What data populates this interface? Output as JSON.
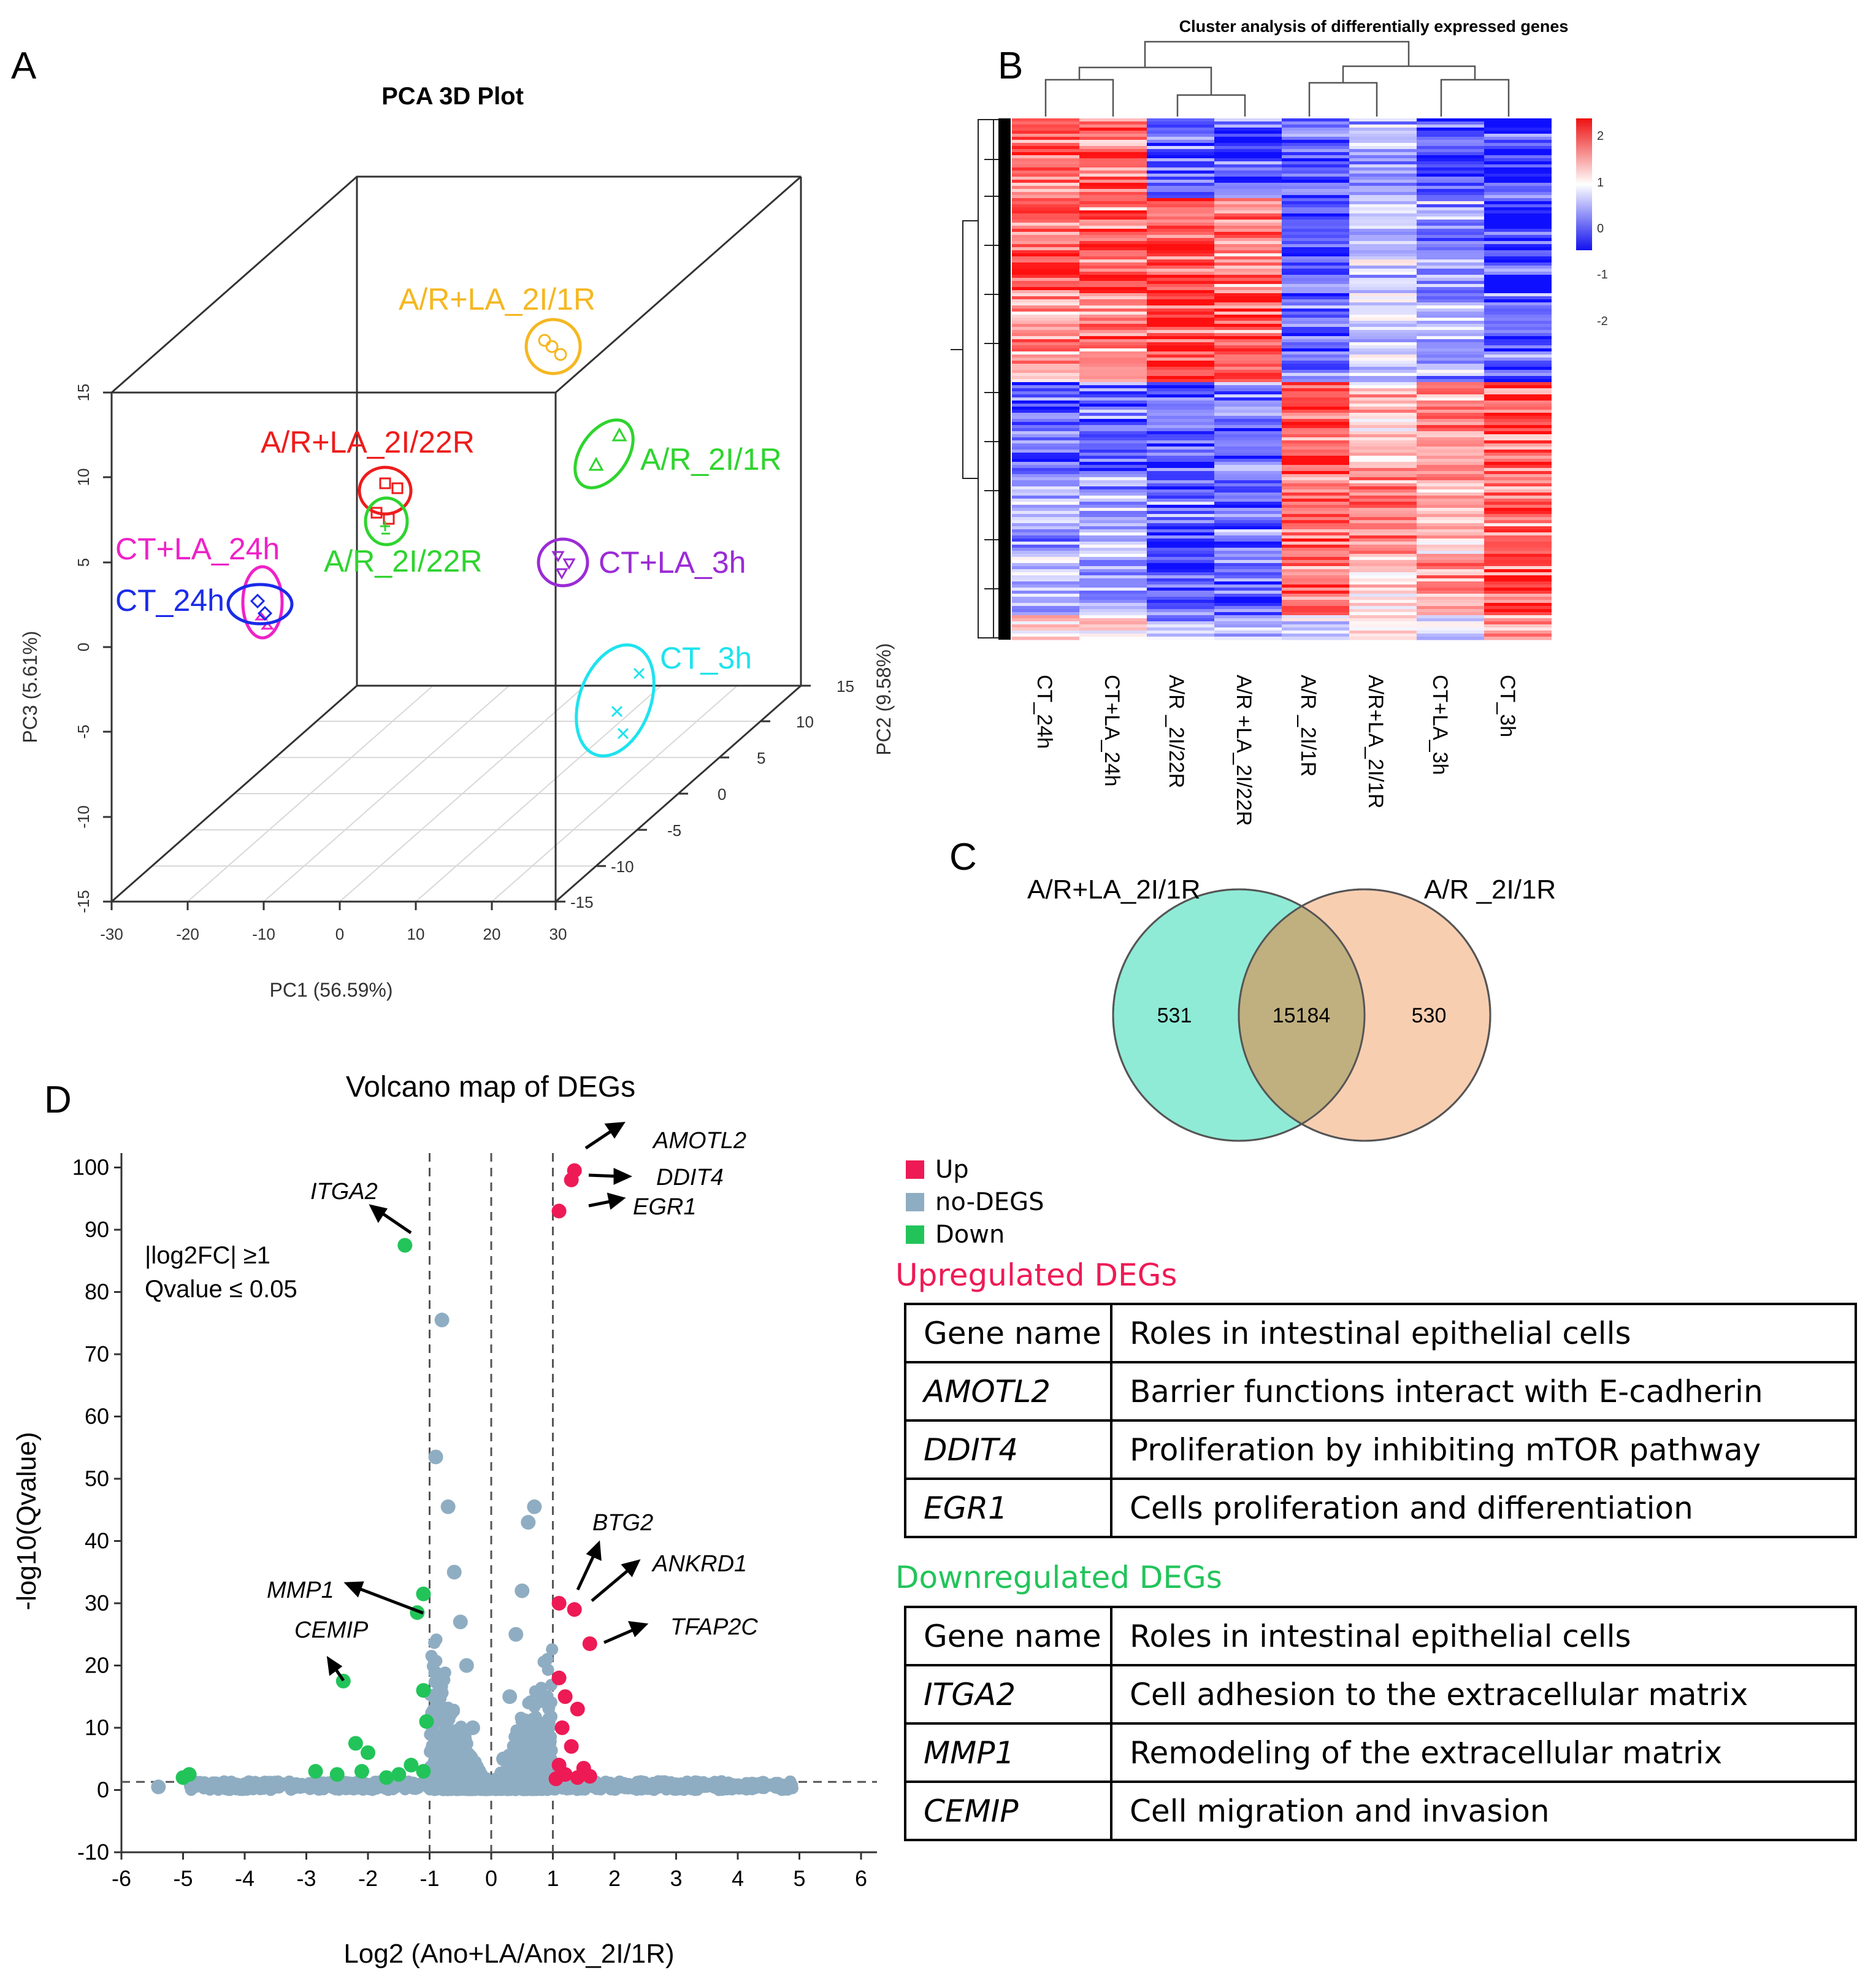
{
  "panels": {
    "a": "A",
    "b": "B",
    "c": "C",
    "d": "D"
  },
  "pca": {
    "title": "PCA 3D Plot",
    "x_label": "PC1 (56.59%)",
    "y_label": "PC2 (9.58%)",
    "z_label": "PC3 (5.61%)",
    "x_ticks": [
      "-30",
      "-20",
      "-10",
      "0",
      "10",
      "20",
      "30"
    ],
    "y_ticks": [
      "-15",
      "-10",
      "-5",
      "0",
      "5",
      "10",
      "15"
    ],
    "z_ticks": [
      "-15",
      "-10",
      "-5",
      "0",
      "5",
      "10",
      "15"
    ],
    "groups": [
      {
        "name": "A/R+LA_2I/1R",
        "color": "#F5B722"
      },
      {
        "name": "A/R+LA_2I/22R",
        "color": "#EE1C1C"
      },
      {
        "name": "A/R_2I/1R",
        "color": "#2ED42E"
      },
      {
        "name": "A/R_2I/22R",
        "color": "#2ED42E"
      },
      {
        "name": "CT+LA_24h",
        "color": "#EE22C8"
      },
      {
        "name": "CT_24h",
        "color": "#1A2BE8"
      },
      {
        "name": "CT+LA_3h",
        "color": "#9B2BD6"
      },
      {
        "name": "CT_3h",
        "color": "#1EE3EE"
      }
    ]
  },
  "heatmap": {
    "title": "Cluster analysis of differentially expressed genes",
    "columns": [
      "CT_24h",
      "CT+LA_24h",
      "A/R _2I/22R",
      "A/R +LA_2I/22R",
      "A/R _2I/1R",
      "A/R+LA_2I/1R",
      "CT+LA_3h",
      "CT_3h"
    ],
    "scale_ticks": [
      "2",
      "1",
      "0",
      "-1",
      "-2"
    ],
    "colors": {
      "high": "#EE1111",
      "mid": "#FFFFFF",
      "low": "#1111EE"
    }
  },
  "venn": {
    "left_label": "A/R+LA_2I/1R",
    "right_label": "A/R _2I/1R",
    "left_only": "531",
    "both": "15184",
    "right_only": "530",
    "left_color": "#8FEBD6",
    "right_color": "#F7C6A3"
  },
  "volcano": {
    "title": "Volcano map of DEGs",
    "xlabel": "Log2 (Ano+LA/Anox_2I/1R)",
    "ylabel": "-log10(Qvalue)",
    "x_ticks": [
      "-6",
      "-5",
      "-4",
      "-3",
      "-2",
      "-1",
      "0",
      "1",
      "2",
      "3",
      "4",
      "5",
      "6"
    ],
    "y_ticks": [
      "100",
      "90",
      "80",
      "70",
      "60",
      "50",
      "40",
      "30",
      "20",
      "10",
      "0",
      "-10"
    ],
    "threshold_line1": "|log2FC| ≥1",
    "threshold_line2": "Qvalue ≤ 0.05",
    "legend": [
      {
        "label": "Up",
        "color": "#EE1A55"
      },
      {
        "label": "no-DEGS",
        "color": "#8FADC2"
      },
      {
        "label": "Down",
        "color": "#22C45A"
      }
    ],
    "gene_labels": [
      "AMOTL2",
      "DDIT4",
      "EGR1",
      "ITGA2",
      "BTG2",
      "ANKRD1",
      "MMP1",
      "TFAP2C",
      "CEMIP"
    ]
  },
  "chart_data": {
    "type": "scatter",
    "title": "Volcano map of DEGs",
    "xlabel": "Log2 (Ano+LA/Anox_2I/1R)",
    "ylabel": "-log10(Qvalue)",
    "xlim": [
      -6,
      6
    ],
    "ylim": [
      -10,
      100
    ],
    "thresholds": {
      "x": [
        -1,
        1
      ],
      "y": 1.3
    },
    "series": [
      {
        "name": "Up",
        "points": [
          [
            1.35,
            99.5
          ],
          [
            1.3,
            98
          ],
          [
            1.1,
            93
          ],
          [
            1.1,
            30
          ],
          [
            1.35,
            29
          ],
          [
            1.6,
            23.5
          ],
          [
            1.1,
            18
          ],
          [
            1.2,
            15
          ],
          [
            1.4,
            13
          ],
          [
            1.15,
            10
          ],
          [
            1.3,
            7
          ],
          [
            1.1,
            4
          ],
          [
            1.5,
            3.5
          ],
          [
            1.2,
            2.5
          ],
          [
            1.4,
            2
          ],
          [
            1.6,
            2.2
          ],
          [
            1.05,
            1.8
          ]
        ]
      },
      {
        "name": "Down",
        "points": [
          [
            -1.4,
            87.5
          ],
          [
            -1.1,
            31.5
          ],
          [
            -1.2,
            28.5
          ],
          [
            -2.4,
            17.5
          ],
          [
            -1.1,
            16
          ],
          [
            -1.05,
            11
          ],
          [
            -2.2,
            7.5
          ],
          [
            -2.0,
            6
          ],
          [
            -5.0,
            2
          ],
          [
            -4.9,
            2.5
          ],
          [
            -2.85,
            3
          ],
          [
            -2.5,
            2.5
          ],
          [
            -2.1,
            3
          ],
          [
            -1.7,
            2
          ],
          [
            -1.5,
            2.5
          ],
          [
            -1.3,
            4
          ],
          [
            -1.1,
            3
          ]
        ]
      },
      {
        "name": "no-DEGS",
        "points": [
          [
            -0.8,
            75.5
          ],
          [
            -0.9,
            53.5
          ],
          [
            -0.7,
            45.5
          ],
          [
            0.7,
            45.5
          ],
          [
            0.6,
            43
          ],
          [
            -0.6,
            35
          ],
          [
            0.5,
            32
          ],
          [
            -0.5,
            27
          ],
          [
            0.4,
            25
          ],
          [
            -0.4,
            20
          ],
          [
            0.3,
            15
          ],
          [
            -0.3,
            10
          ],
          [
            0.2,
            5
          ],
          [
            -0.2,
            3
          ],
          [
            -5.4,
            0.5
          ],
          [
            -4.2,
            0.8
          ],
          [
            4.8,
            0.5
          ],
          [
            4.4,
            0.6
          ],
          [
            3.2,
            0.8
          ],
          [
            -3.3,
            0.9
          ]
        ]
      }
    ],
    "labeled_genes": [
      {
        "gene": "AMOTL2",
        "x": 1.35,
        "y": 99.5
      },
      {
        "gene": "DDIT4",
        "x": 1.3,
        "y": 98
      },
      {
        "gene": "EGR1",
        "x": 1.1,
        "y": 93
      },
      {
        "gene": "ITGA2",
        "x": -1.4,
        "y": 87.5
      },
      {
        "gene": "BTG2",
        "x": 1.1,
        "y": 30
      },
      {
        "gene": "ANKRD1",
        "x": 1.35,
        "y": 29
      },
      {
        "gene": "MMP1",
        "x": -1.2,
        "y": 28.5
      },
      {
        "gene": "TFAP2C",
        "x": 1.6,
        "y": 23.5
      },
      {
        "gene": "CEMIP",
        "x": -2.4,
        "y": 17.5
      }
    ]
  },
  "tables": {
    "up_title": "Upregulated DEGs",
    "down_title": "Downregulated DEGs",
    "up_color": "#EE1A55",
    "down_color": "#22C45A",
    "header": {
      "gene": "Gene name",
      "role": "Roles in intestinal epithelial cells"
    },
    "up_rows": [
      {
        "gene": "AMOTL2",
        "role": "Barrier functions interact with E-cadherin"
      },
      {
        "gene": "DDIT4",
        "role": "Proliferation by inhibiting mTOR pathway"
      },
      {
        "gene": "EGR1",
        "role": "Cells proliferation and differentiation"
      }
    ],
    "down_rows": [
      {
        "gene": "ITGA2",
        "role": "Cell adhesion to the extracellular matrix"
      },
      {
        "gene": "MMP1",
        "role": "Remodeling of the extracellular matrix"
      },
      {
        "gene": "CEMIP",
        "role": "Cell migration and invasion"
      }
    ]
  }
}
